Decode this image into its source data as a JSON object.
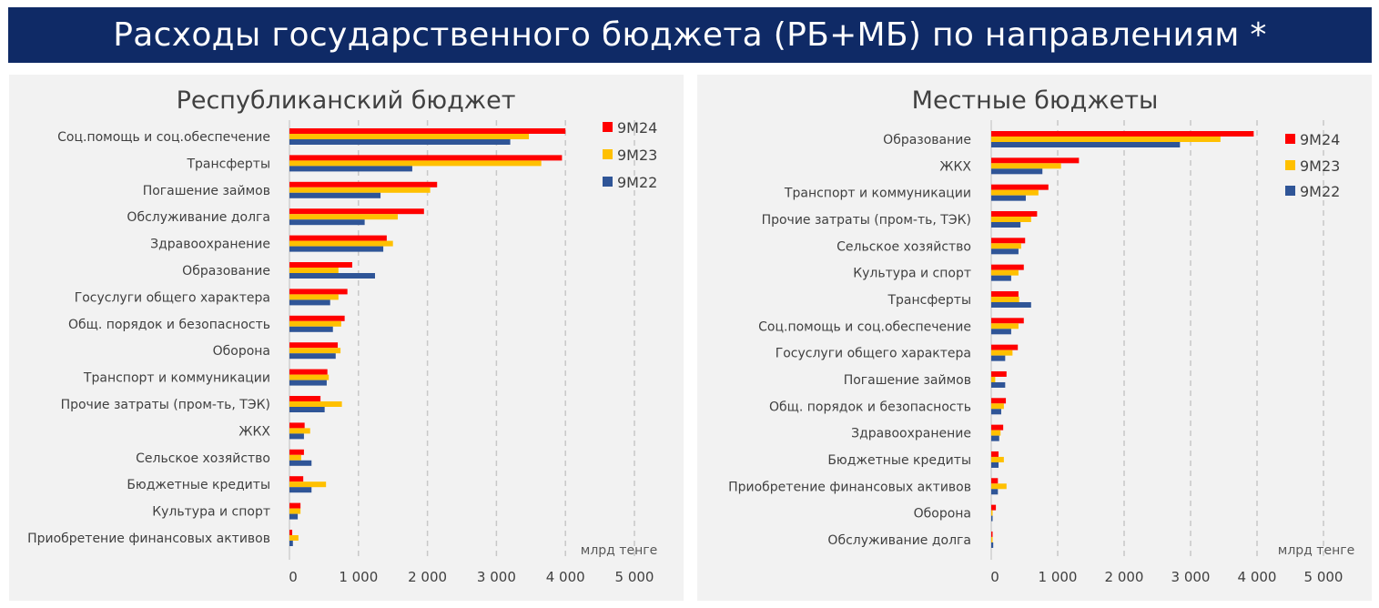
{
  "header": {
    "title": "Расходы государственного бюджета (РБ+МБ) по направлениям *"
  },
  "colors": {
    "9M24": "#ff0000",
    "9M23": "#ffc000",
    "9M22": "#2f5597",
    "header_bg": "#0f2a66"
  },
  "chart_data": [
    {
      "type": "bar",
      "orientation": "horizontal",
      "title": "Республиканский бюджет",
      "xlabel": "млрд тенге",
      "xlim": [
        0,
        5000
      ],
      "xticks": [
        "0",
        "1 000",
        "2 000",
        "3 000",
        "4 000",
        "5 000"
      ],
      "grid": true,
      "legend_position": "top-right",
      "categories": [
        "Соц.помощь и соц.обеспечение",
        "Трансферты",
        "Погашение займов",
        "Обслуживание долга",
        "Здравоохранение",
        "Образование",
        "Госуслуги общего характера",
        "Общ. порядок и безопасность",
        "Оборона",
        "Транспорт и коммуникации",
        "Прочие затраты (пром-ть, ТЭК)",
        "ЖКХ",
        "Сельское хозяйство",
        "Бюджетные кредиты",
        "Культура и спорт",
        "Приобретение финансовых активов"
      ],
      "series": [
        {
          "name": "9M24",
          "values": [
            4000,
            3950,
            2140,
            1950,
            1410,
            910,
            840,
            800,
            700,
            550,
            450,
            220,
            210,
            200,
            160,
            40
          ]
        },
        {
          "name": "9M23",
          "values": [
            3470,
            3650,
            2040,
            1570,
            1500,
            710,
            710,
            750,
            740,
            570,
            760,
            300,
            170,
            530,
            160,
            130
          ]
        },
        {
          "name": "9M22",
          "values": [
            3200,
            1780,
            1320,
            1090,
            1360,
            1240,
            590,
            630,
            670,
            540,
            510,
            210,
            320,
            320,
            120,
            50
          ]
        }
      ]
    },
    {
      "type": "bar",
      "orientation": "horizontal",
      "title": "Местные бюджеты",
      "xlabel": "млрд тенге",
      "xlim": [
        0,
        5000
      ],
      "xticks": [
        "0",
        "1 000",
        "2 000",
        "3 000",
        "4 000",
        "5 000"
      ],
      "grid": true,
      "legend_position": "top-right",
      "categories": [
        "Образование",
        "ЖКХ",
        "Транспорт и коммуникации",
        "Прочие затраты (пром-ть, ТЭК)",
        "Сельское хозяйство",
        "Культура и спорт",
        "Трансферты",
        "Соц.помощь и соц.обеспечение",
        "Госуслуги общего характера",
        "Погашение займов",
        "Общ. порядок и безопасность",
        "Здравоохранение",
        "Бюджетные кредиты",
        "Приобретение финансовых активов",
        "Оборона",
        "Обслуживание долга"
      ],
      "series": [
        {
          "name": "9M24",
          "values": [
            3950,
            1320,
            860,
            690,
            510,
            490,
            410,
            490,
            400,
            230,
            220,
            180,
            110,
            100,
            70,
            15
          ]
        },
        {
          "name": "9M23",
          "values": [
            3450,
            1050,
            710,
            600,
            450,
            410,
            420,
            410,
            320,
            60,
            190,
            140,
            190,
            230,
            10,
            10
          ]
        },
        {
          "name": "9M22",
          "values": [
            2840,
            770,
            520,
            440,
            410,
            300,
            600,
            300,
            210,
            210,
            150,
            120,
            110,
            100,
            10,
            30
          ]
        }
      ]
    }
  ]
}
